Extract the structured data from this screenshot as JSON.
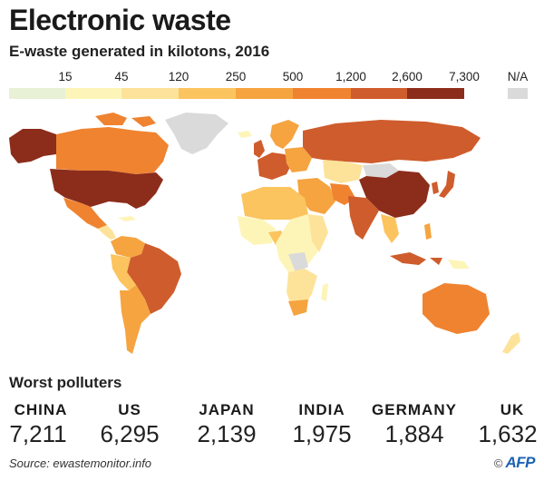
{
  "title": "Electronic waste",
  "subtitle": "E-waste generated in kilotons, 2016",
  "legend": {
    "thresholds": [
      "15",
      "45",
      "120",
      "250",
      "500",
      "1,200",
      "2,600",
      "7,300"
    ],
    "na_label": "N/A",
    "colors": [
      "#e8f1d6",
      "#fdf5b8",
      "#fde39a",
      "#fbc45f",
      "#f5a440",
      "#ef8330",
      "#cf5c2c",
      "#8c2d1b"
    ],
    "na_color": "#dadada"
  },
  "polluters": {
    "heading": "Worst polluters",
    "items": [
      {
        "country": "CHINA",
        "value": "7,211"
      },
      {
        "country": "US",
        "value": "6,295"
      },
      {
        "country": "JAPAN",
        "value": "2,139"
      },
      {
        "country": "INDIA",
        "value": "1,975"
      },
      {
        "country": "GERMANY",
        "value": "1,884"
      },
      {
        "country": "UK",
        "value": "1,632"
      }
    ]
  },
  "source": "Source: ewastemonitor.info",
  "credit": {
    "copyright": "©",
    "agency": "AFP"
  }
}
